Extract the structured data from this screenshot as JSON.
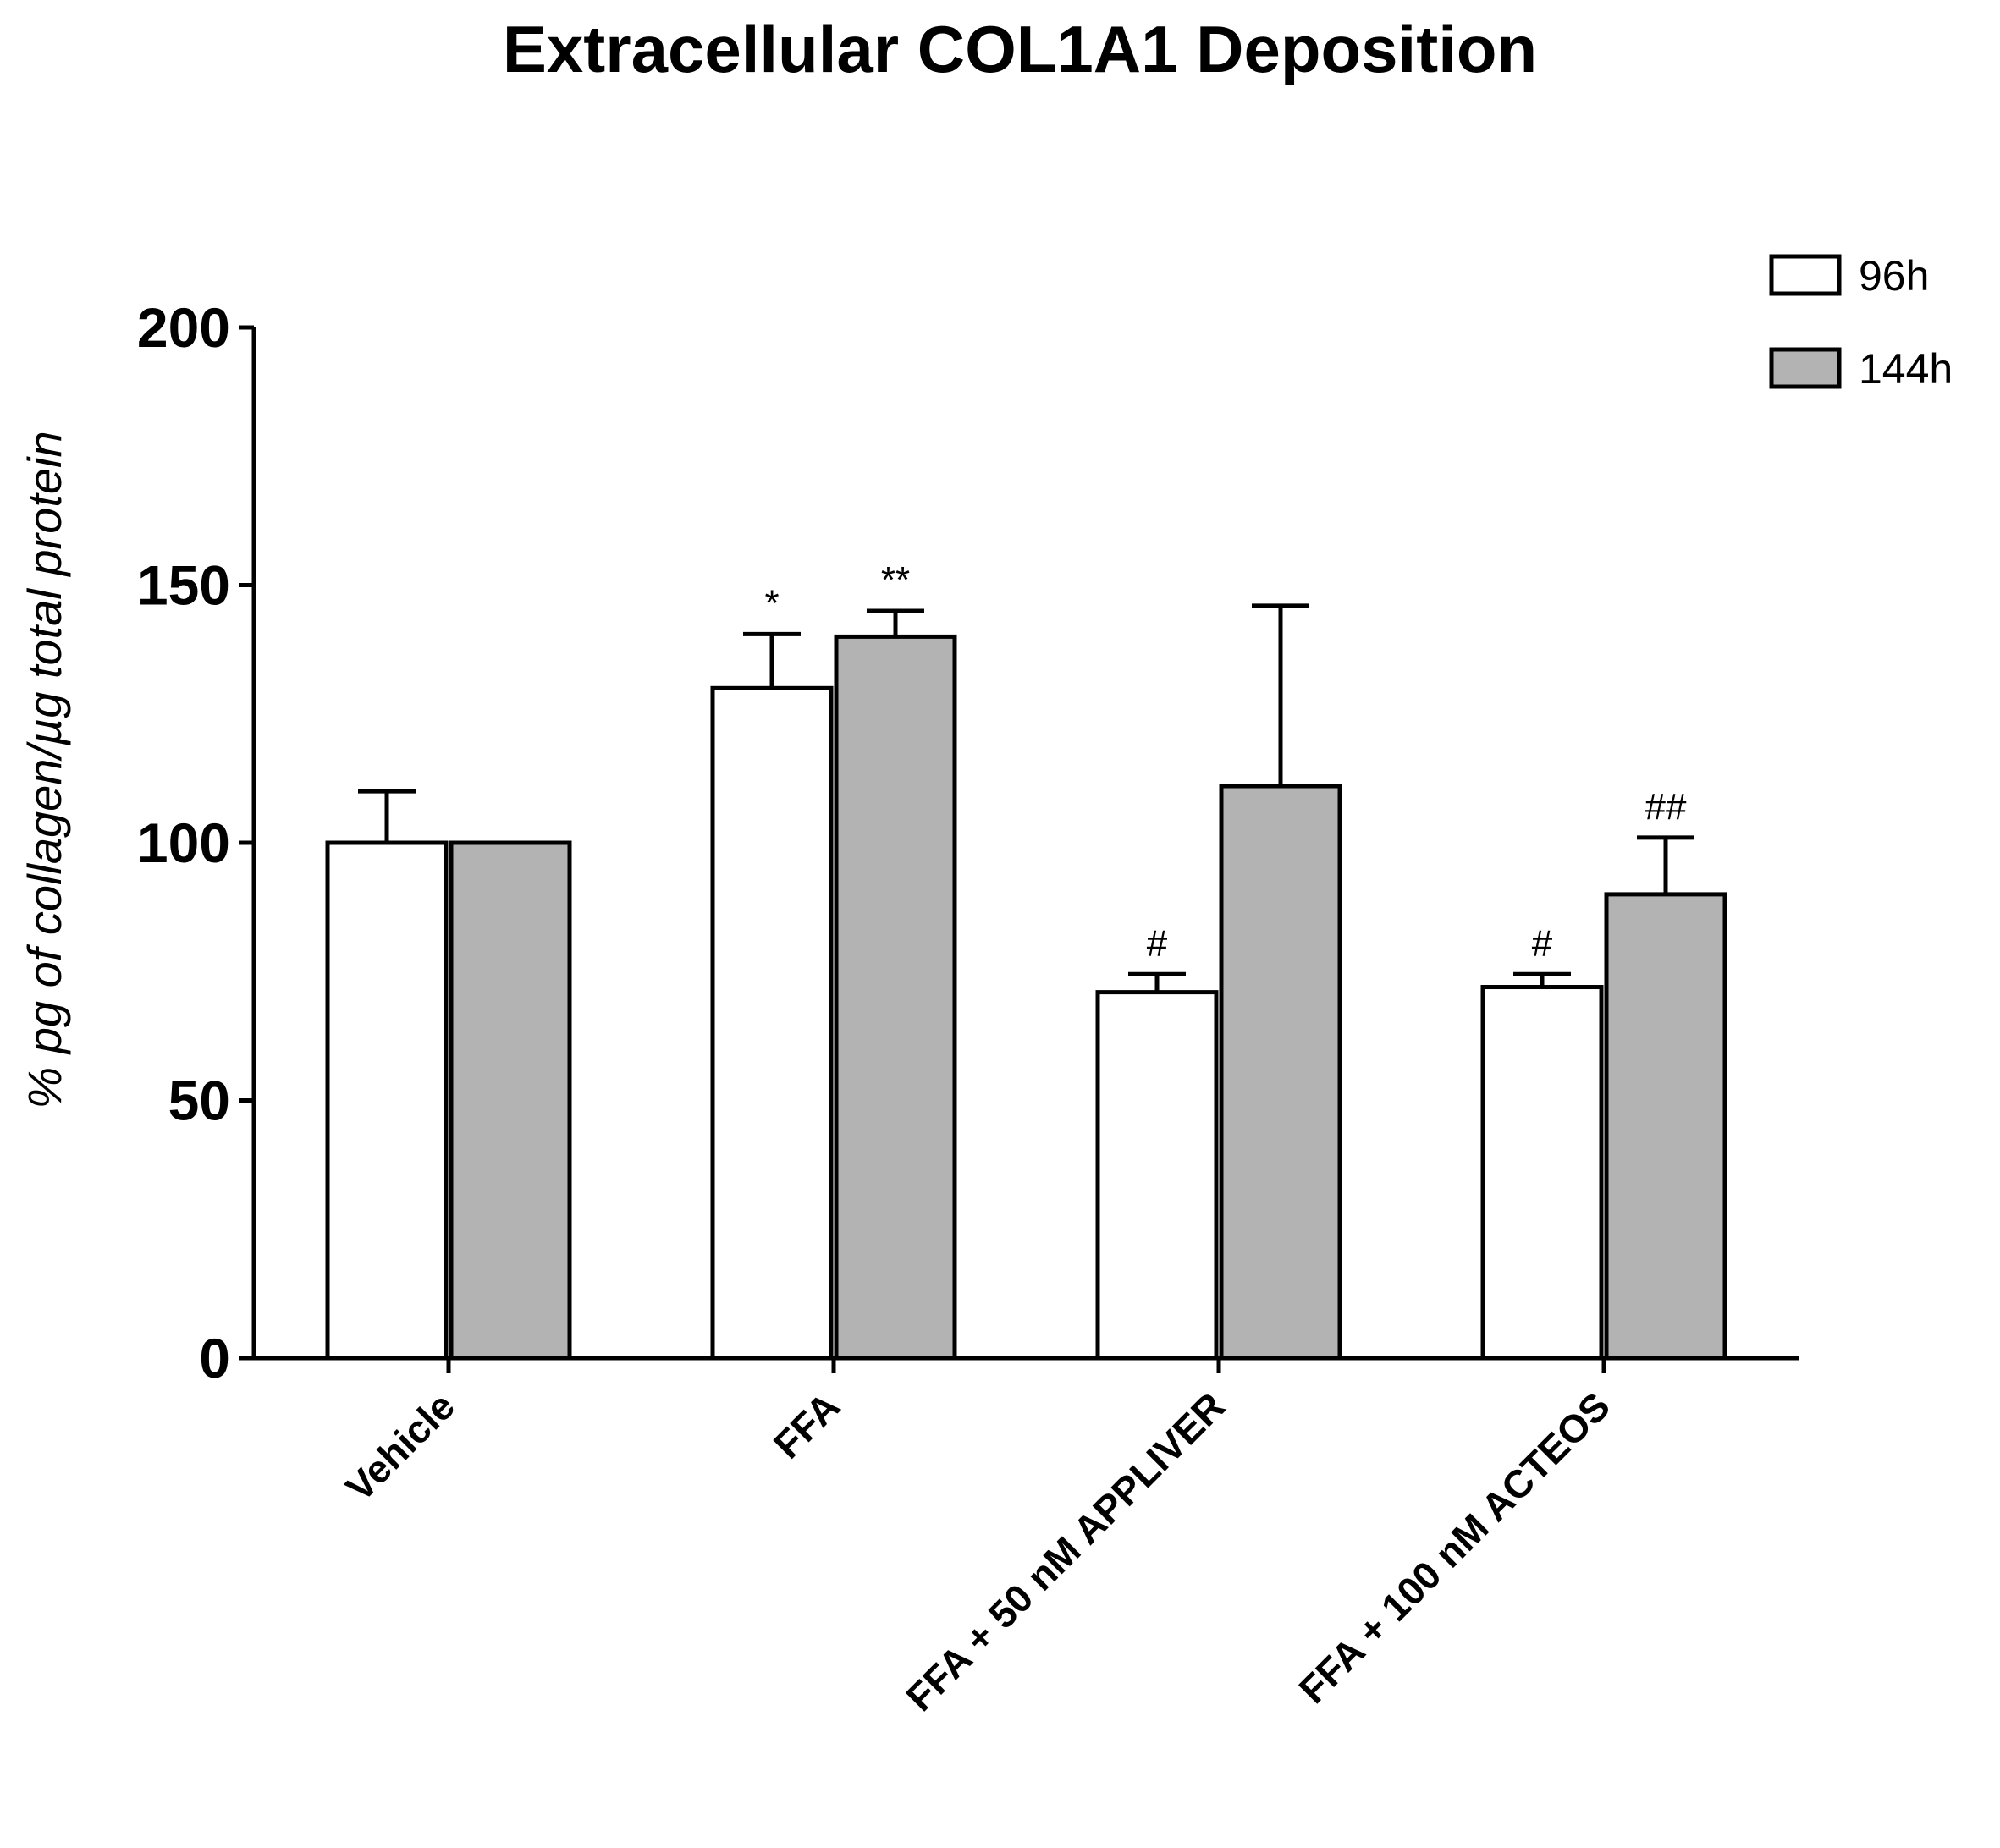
{
  "chart_data": {
    "type": "bar",
    "title": "Extracellular COL1A1 Deposition",
    "ylabel": "% pg of collagen/µg total protein",
    "xlabel": "",
    "ylim": [
      0,
      200
    ],
    "yticks": [
      0,
      50,
      100,
      150,
      200
    ],
    "ytick_labels": [
      "0",
      "50",
      "100",
      "150",
      "200"
    ],
    "categories": [
      "Vehicle",
      "FFA",
      "FFA + 50 nM APPLIVER",
      "FFA + 100 nM ACTEOS"
    ],
    "legend_position": "top-right",
    "series": [
      {
        "name": "96h",
        "color": "#ffffff",
        "values": [
          100,
          130,
          71,
          72
        ],
        "errors": [
          10,
          10.5,
          3.5,
          2.5
        ],
        "significance": [
          "",
          "*",
          "#",
          "#"
        ]
      },
      {
        "name": "144h",
        "color": "#b3b3b3",
        "values": [
          100,
          140,
          111,
          90
        ],
        "errors": [
          0,
          5,
          35,
          11
        ],
        "significance": [
          "",
          "**",
          "",
          "##"
        ]
      }
    ]
  }
}
